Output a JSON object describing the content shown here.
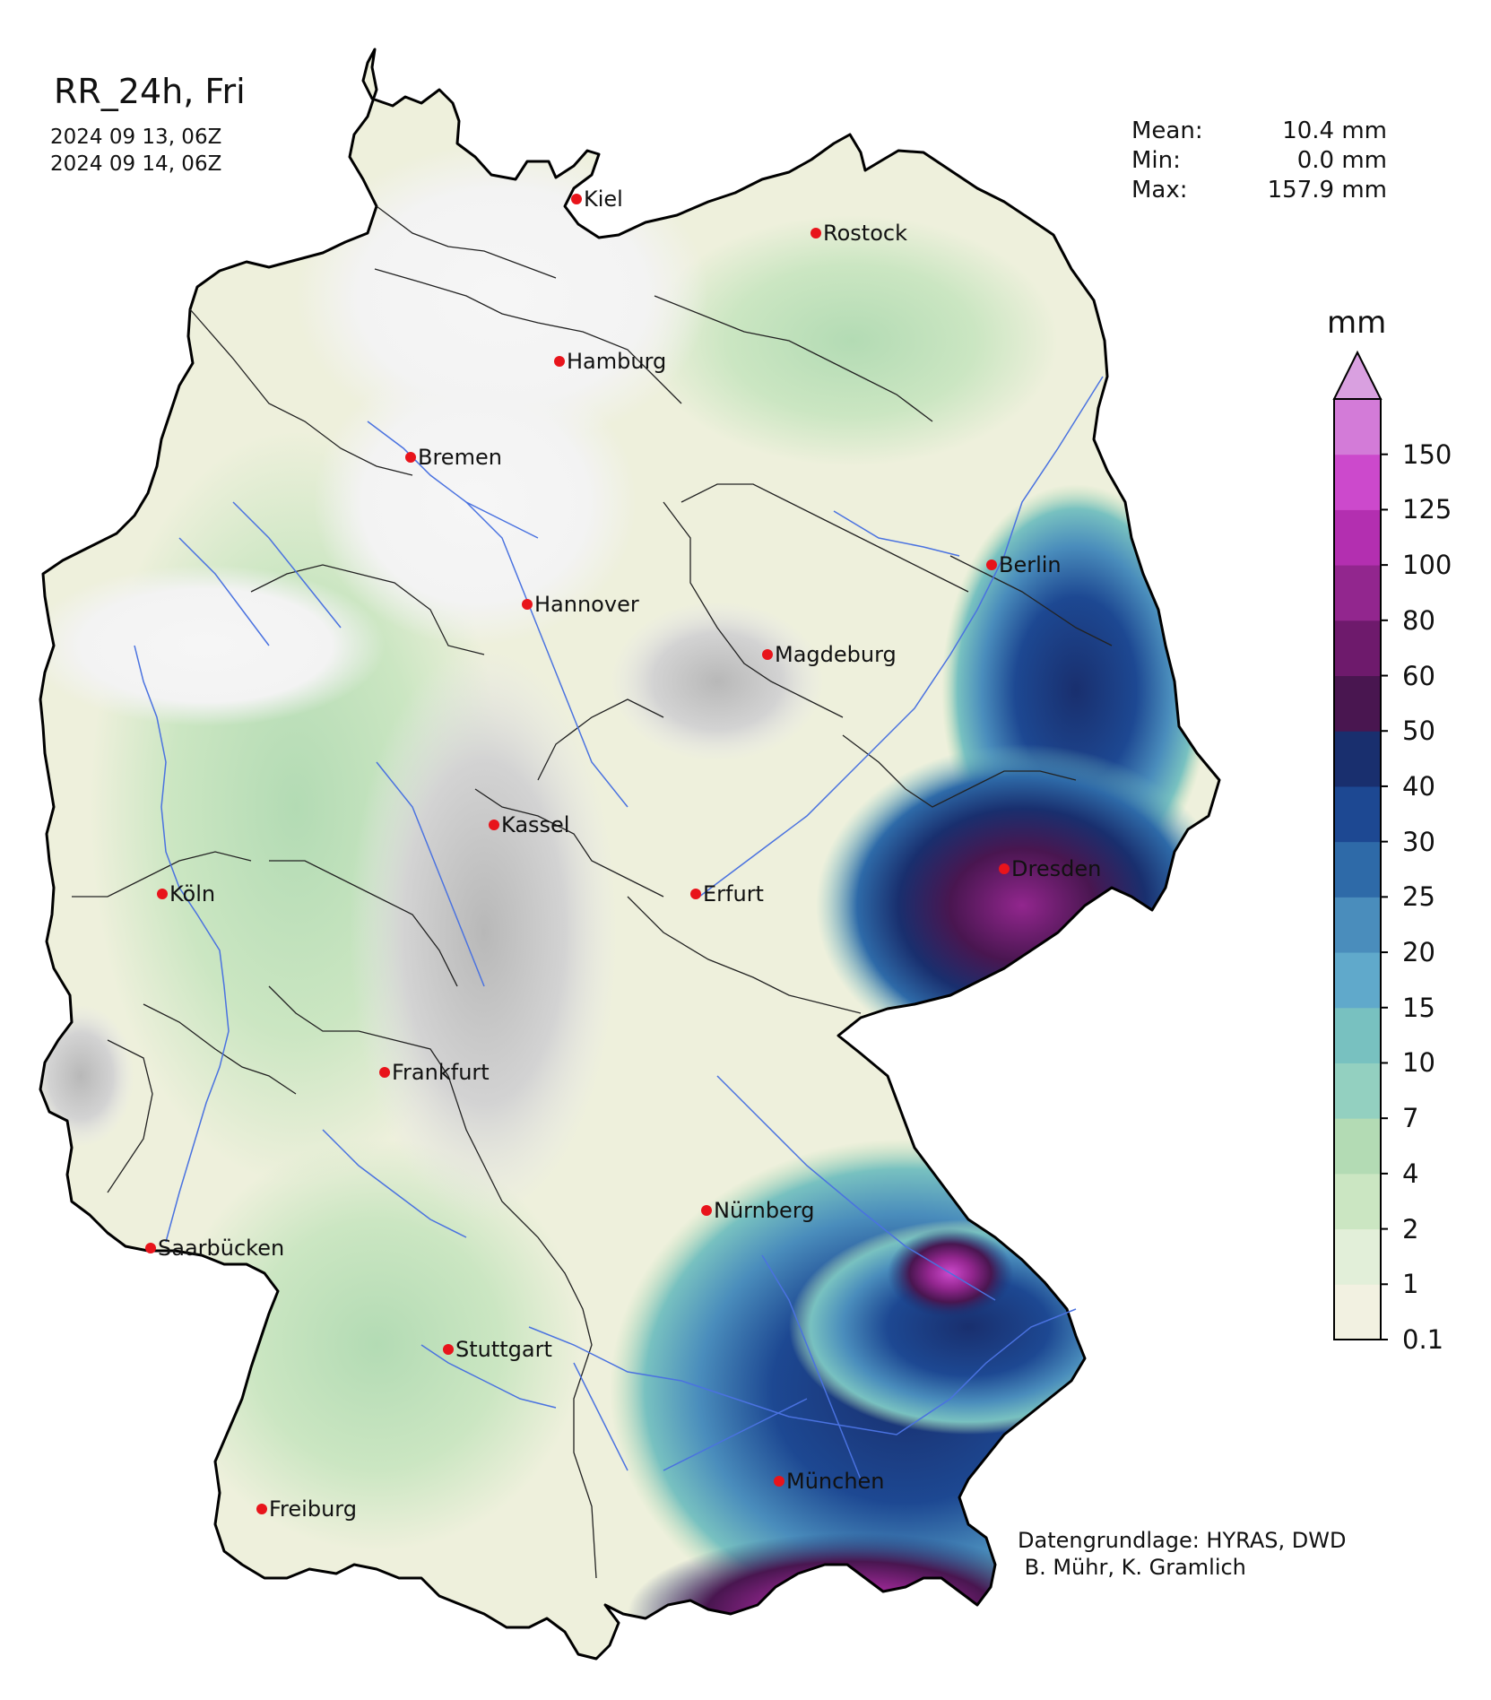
{
  "title": "RR_24h, Fri",
  "dates": [
    "2024 09 13, 06Z",
    "2024 09 14, 06Z"
  ],
  "stats": [
    {
      "label": "Mean:",
      "value": "10.4 mm"
    },
    {
      "label": "Min:",
      "value": "0.0 mm"
    },
    {
      "label": "Max:",
      "value": "157.9 mm"
    }
  ],
  "colorbar": {
    "unit": "mm",
    "ticks": [
      "0.1",
      "1",
      "2",
      "4",
      "7",
      "10",
      "15",
      "20",
      "25",
      "30",
      "40",
      "50",
      "60",
      "80",
      "100",
      "125",
      "150"
    ],
    "colors": [
      "#f2f1e1",
      "#e2efd9",
      "#cbe6c2",
      "#b3dbb4",
      "#93d0c0",
      "#78c1c0",
      "#60a9cb",
      "#4a8dbc",
      "#2e6aa8",
      "#1d4892",
      "#192f6e",
      "#491650",
      "#6e1a6c",
      "#92268e",
      "#b32fb0",
      "#cc49cc",
      "#d37bd8"
    ],
    "extend_color": "#d9a0e0"
  },
  "cities": [
    {
      "name": "Kiel",
      "label": "Kiel"
    },
    {
      "name": "Rostock",
      "label": "Rostock"
    },
    {
      "name": "Hamburg",
      "label": "Hamburg"
    },
    {
      "name": "Bremen",
      "label": "Bremen"
    },
    {
      "name": "Berlin",
      "label": "Berlin"
    },
    {
      "name": "Hannover",
      "label": "Hannover"
    },
    {
      "name": "Magdeburg",
      "label": "Magdeburg"
    },
    {
      "name": "Kassel",
      "label": "Kassel"
    },
    {
      "name": "Dresden",
      "label": "Dresden"
    },
    {
      "name": "Köln",
      "label": "Köln"
    },
    {
      "name": "Erfurt",
      "label": "Erfurt"
    },
    {
      "name": "Frankfurt",
      "label": "Frankfurt"
    },
    {
      "name": "Nürnberg",
      "label": "Nürnberg"
    },
    {
      "name": "Saarbücken",
      "label": "Saarbücken"
    },
    {
      "name": "Stuttgart",
      "label": "Stuttgart"
    },
    {
      "name": "München",
      "label": "München"
    },
    {
      "name": "Freiburg",
      "label": "Freiburg"
    }
  ],
  "credits": [
    "Datengrundlage: HYRAS, DWD",
    " B. Mühr, K. Gramlich"
  ]
}
